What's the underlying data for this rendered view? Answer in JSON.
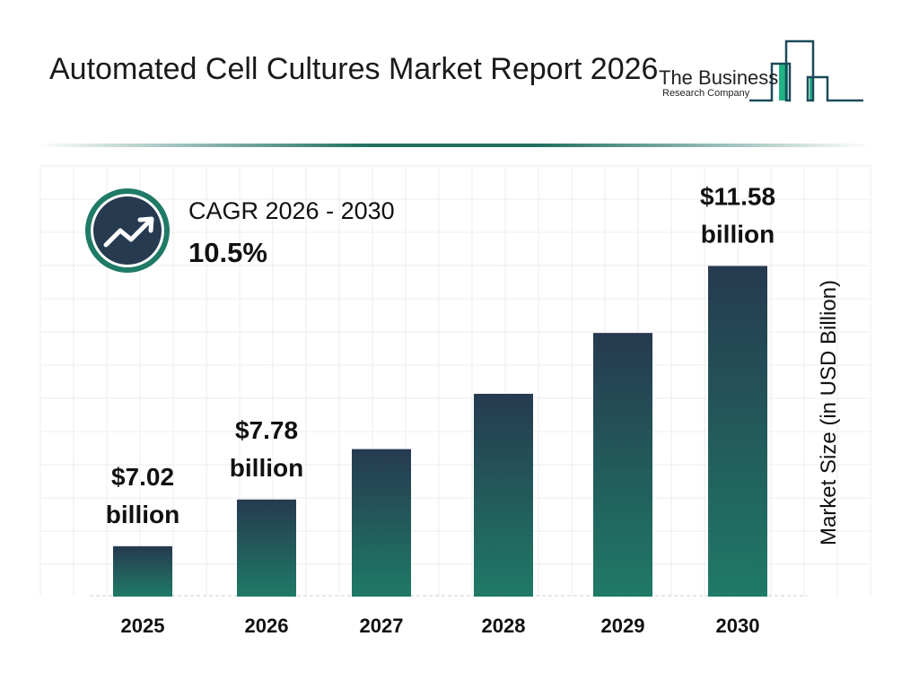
{
  "header": {
    "title": "Automated Cell Cultures Market Report 2026"
  },
  "logo": {
    "line1": "The Business",
    "line2": "Research Company"
  },
  "cagr": {
    "label": "CAGR 2026 - 2030",
    "value": "10.5%",
    "icon": "trending-up-icon"
  },
  "colors": {
    "bar_top": "#263a50",
    "bar_bottom": "#1f7a66",
    "ring": "#1f7a66",
    "icon_bg": "#263a50"
  },
  "chart_data": {
    "type": "bar",
    "title": "",
    "xlabel": "",
    "ylabel": "Market Size (in USD Billion)",
    "categories": [
      "2025",
      "2026",
      "2027",
      "2028",
      "2029",
      "2030"
    ],
    "values": [
      7.02,
      7.78,
      8.6,
      9.5,
      10.49,
      11.58
    ],
    "data_labels": [
      "$7.02 billion",
      "$7.78 billion",
      "",
      "",
      "",
      "$11.58 billion"
    ],
    "ylim": [
      6.2,
      12
    ],
    "grid": true
  }
}
